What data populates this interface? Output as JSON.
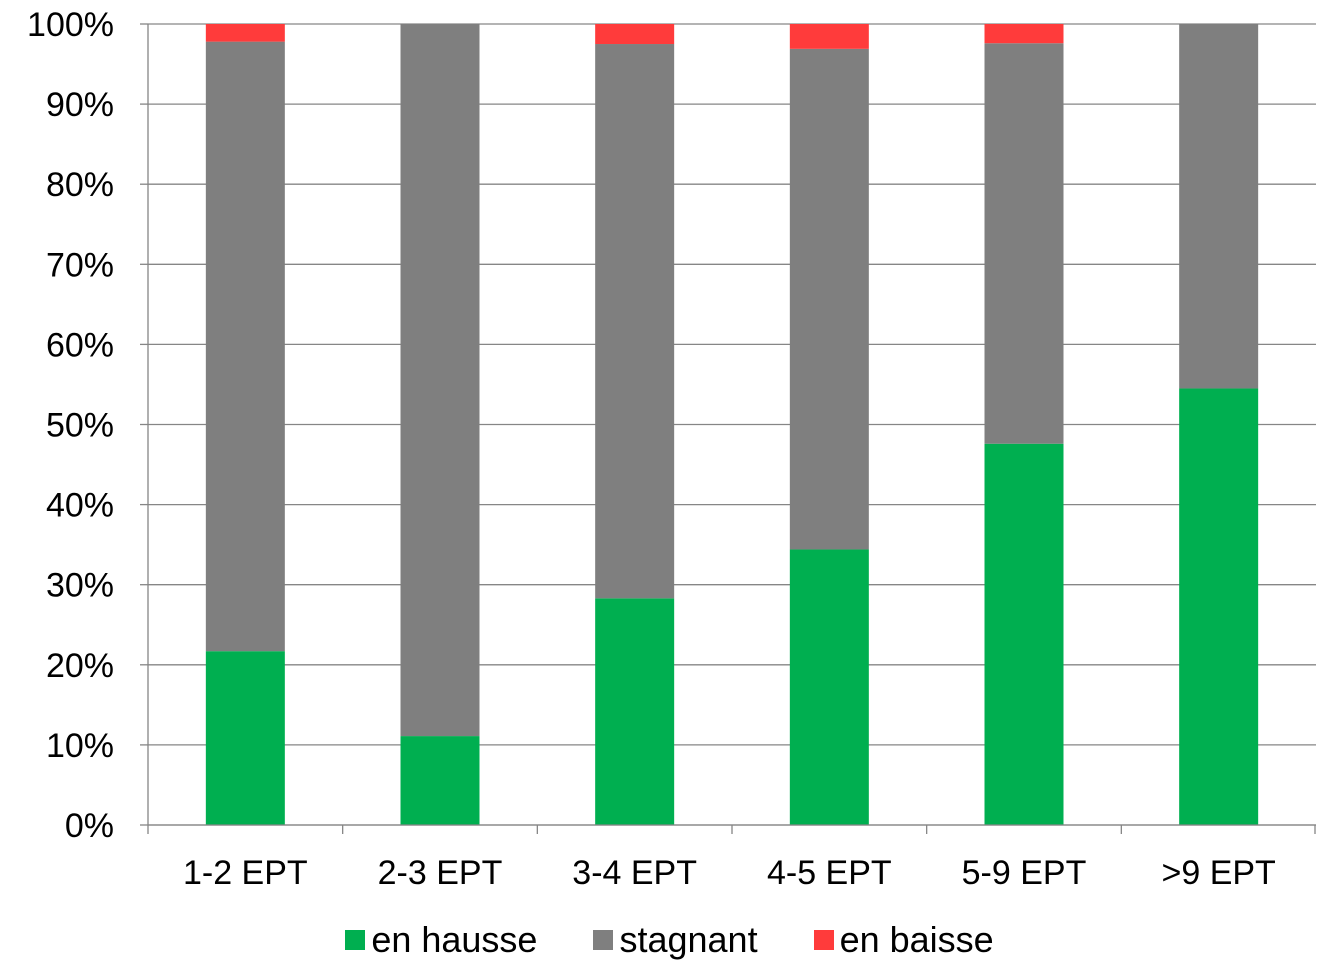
{
  "chart_data": {
    "type": "bar",
    "stacked": true,
    "title": "",
    "xlabel": "",
    "ylabel": "",
    "ylim": [
      0,
      100
    ],
    "y_ticks": [
      "0%",
      "10%",
      "20%",
      "30%",
      "40%",
      "50%",
      "60%",
      "70%",
      "80%",
      "90%",
      "100%"
    ],
    "grid": true,
    "legend_position": "bottom",
    "categories": [
      "1-2 EPT",
      "2-3 EPT",
      "3-4 EPT",
      "4-5 EPT",
      "5-9 EPT",
      ">9 EPT"
    ],
    "series": [
      {
        "name": "en hausse",
        "color": "#00AF50",
        "values": [
          21.7,
          11.1,
          28.3,
          34.4,
          47.6,
          54.5
        ]
      },
      {
        "name": "stagnant",
        "color": "#7F7F7F",
        "values": [
          76.1,
          88.9,
          69.2,
          62.5,
          50.0,
          45.5
        ]
      },
      {
        "name": "en baisse",
        "color": "#FF3B3B",
        "values": [
          2.2,
          0.0,
          2.5,
          3.1,
          2.4,
          0.0
        ]
      }
    ]
  }
}
